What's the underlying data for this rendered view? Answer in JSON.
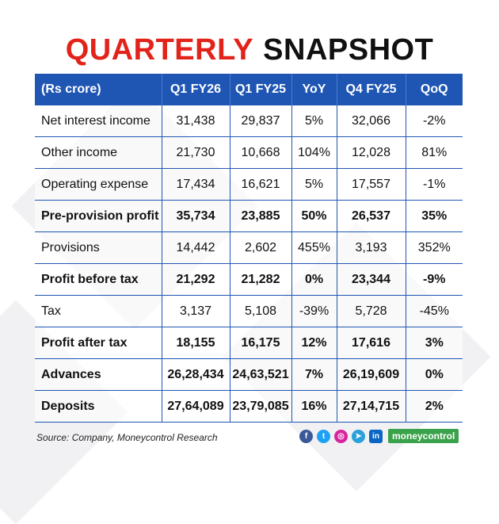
{
  "title": {
    "part1": "QUARTERLY",
    "part2": "SNAPSHOT"
  },
  "table": {
    "headers": [
      "(Rs crore)",
      "Q1 FY26",
      "Q1 FY25",
      "YoY",
      "Q4 FY25",
      "QoQ"
    ],
    "rows": [
      {
        "bold": false,
        "cells": [
          "Net interest income",
          "31,438",
          "29,837",
          "5%",
          "32,066",
          "-2%"
        ]
      },
      {
        "bold": false,
        "cells": [
          "Other income",
          "21,730",
          "10,668",
          "104%",
          "12,028",
          "81%"
        ]
      },
      {
        "bold": false,
        "cells": [
          "Operating expense",
          "17,434",
          "16,621",
          "5%",
          "17,557",
          "-1%"
        ]
      },
      {
        "bold": true,
        "cells": [
          "Pre-provision profit",
          "35,734",
          "23,885",
          "50%",
          "26,537",
          "35%"
        ]
      },
      {
        "bold": false,
        "cells": [
          "Provisions",
          "14,442",
          "2,602",
          "455%",
          "3,193",
          "352%"
        ]
      },
      {
        "bold": true,
        "cells": [
          "Profit before tax",
          "21,292",
          "21,282",
          "0%",
          "23,344",
          "-9%"
        ]
      },
      {
        "bold": false,
        "cells": [
          "Tax",
          "3,137",
          "5,108",
          "-39%",
          "5,728",
          "-45%"
        ]
      },
      {
        "bold": true,
        "cells": [
          "Profit after tax",
          "18,155",
          "16,175",
          "12%",
          "17,616",
          "3%"
        ]
      },
      {
        "bold": true,
        "cells": [
          "Advances",
          "26,28,434",
          "24,63,521",
          "7%",
          "26,19,609",
          "0%"
        ]
      },
      {
        "bold": true,
        "cells": [
          "Deposits",
          "27,64,089",
          "23,79,085",
          "16%",
          "27,14,715",
          "2%"
        ]
      }
    ]
  },
  "source": "Source: Company, Moneycontrol Research",
  "social": {
    "icons": [
      {
        "name": "facebook-icon",
        "glyph": "f",
        "color": "#3b5998"
      },
      {
        "name": "twitter-icon",
        "glyph": "t",
        "color": "#1da1f2"
      },
      {
        "name": "instagram-icon",
        "glyph": "◎",
        "color": "#d6249f"
      },
      {
        "name": "telegram-icon",
        "glyph": "➤",
        "color": "#2aa1da"
      },
      {
        "name": "linkedin-icon",
        "glyph": "in",
        "color": "#0a66c2"
      }
    ],
    "brand": "moneycontrol"
  },
  "colors": {
    "title_red": "#e2231a",
    "header_blue": "#1f56b4",
    "brand_green": "#3aa24a"
  }
}
